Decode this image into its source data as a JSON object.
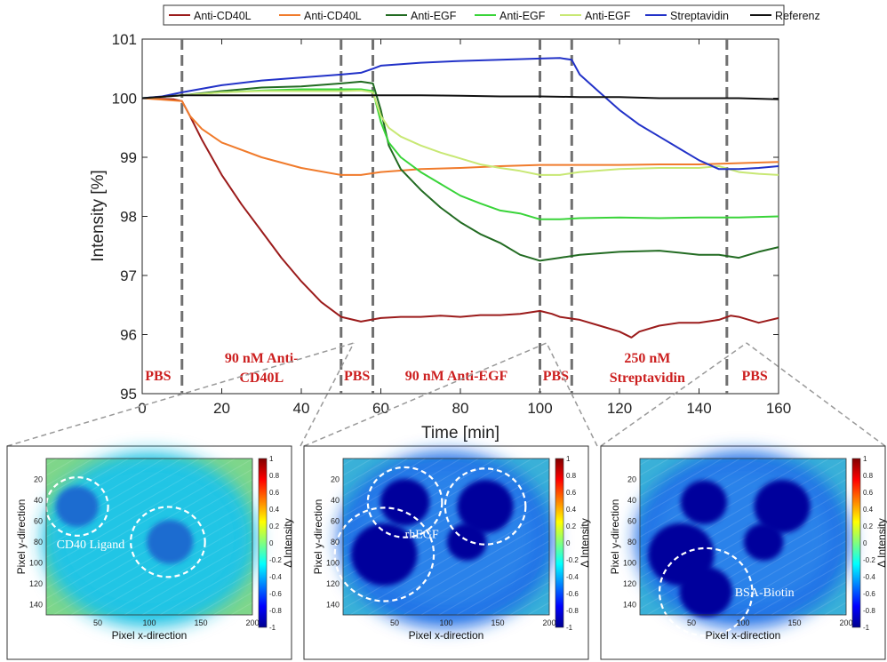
{
  "chart_data": {
    "type": "line",
    "xlabel": "Time [min]",
    "ylabel": "Intensity [%]",
    "xlim": [
      0,
      160
    ],
    "ylim": [
      95,
      101
    ],
    "x_ticks": [
      "0",
      "20",
      "40",
      "60",
      "80",
      "100",
      "120",
      "140",
      "160"
    ],
    "y_ticks": [
      "95",
      "96",
      "97",
      "98",
      "99",
      "100",
      "101"
    ],
    "grid": false,
    "legend_position": "top",
    "phase_dividers": [
      10,
      50,
      58,
      100,
      108,
      147
    ],
    "phase_labels": [
      {
        "lines": [
          "PBS"
        ],
        "x": 4
      },
      {
        "lines": [
          "90 nM Anti-",
          "CD40L"
        ],
        "x": 30
      },
      {
        "lines": [
          "PBS"
        ],
        "x": 54
      },
      {
        "lines": [
          "90 nM Anti-EGF"
        ],
        "x": 79
      },
      {
        "lines": [
          "PBS"
        ],
        "x": 104
      },
      {
        "lines": [
          "250 nM",
          "Streptavidin"
        ],
        "x": 127
      },
      {
        "lines": [
          "PBS"
        ],
        "x": 154
      }
    ],
    "series": [
      {
        "name": "Anti-CD40L",
        "color": "#9b1b1b",
        "points": [
          [
            0,
            100
          ],
          [
            8,
            99.98
          ],
          [
            10,
            99.95
          ],
          [
            12,
            99.7
          ],
          [
            15,
            99.3
          ],
          [
            20,
            98.7
          ],
          [
            25,
            98.2
          ],
          [
            30,
            97.75
          ],
          [
            35,
            97.3
          ],
          [
            40,
            96.9
          ],
          [
            45,
            96.55
          ],
          [
            50,
            96.3
          ],
          [
            55,
            96.22
          ],
          [
            60,
            96.28
          ],
          [
            65,
            96.3
          ],
          [
            70,
            96.3
          ],
          [
            75,
            96.32
          ],
          [
            80,
            96.3
          ],
          [
            85,
            96.33
          ],
          [
            90,
            96.33
          ],
          [
            95,
            96.35
          ],
          [
            100,
            96.4
          ],
          [
            103,
            96.35
          ],
          [
            105,
            96.3
          ],
          [
            110,
            96.25
          ],
          [
            115,
            96.15
          ],
          [
            120,
            96.05
          ],
          [
            123,
            95.95
          ],
          [
            125,
            96.05
          ],
          [
            130,
            96.15
          ],
          [
            135,
            96.2
          ],
          [
            140,
            96.2
          ],
          [
            145,
            96.25
          ],
          [
            148,
            96.32
          ],
          [
            150,
            96.3
          ],
          [
            155,
            96.2
          ],
          [
            160,
            96.28
          ]
        ]
      },
      {
        "name": "Anti-CD40L",
        "color": "#f07b2c",
        "points": [
          [
            0,
            100
          ],
          [
            10,
            99.95
          ],
          [
            12,
            99.7
          ],
          [
            15,
            99.48
          ],
          [
            20,
            99.25
          ],
          [
            30,
            99.0
          ],
          [
            40,
            98.82
          ],
          [
            50,
            98.7
          ],
          [
            55,
            98.7
          ],
          [
            60,
            98.75
          ],
          [
            70,
            98.8
          ],
          [
            80,
            98.82
          ],
          [
            90,
            98.85
          ],
          [
            100,
            98.87
          ],
          [
            110,
            98.87
          ],
          [
            120,
            98.87
          ],
          [
            130,
            98.88
          ],
          [
            140,
            98.88
          ],
          [
            150,
            98.9
          ],
          [
            160,
            98.92
          ]
        ]
      },
      {
        "name": "Anti-EGF",
        "color": "#226b22",
        "points": [
          [
            0,
            100
          ],
          [
            10,
            100.05
          ],
          [
            20,
            100.12
          ],
          [
            30,
            100.18
          ],
          [
            40,
            100.2
          ],
          [
            50,
            100.25
          ],
          [
            55,
            100.28
          ],
          [
            58,
            100.25
          ],
          [
            60,
            99.8
          ],
          [
            62,
            99.2
          ],
          [
            65,
            98.8
          ],
          [
            70,
            98.45
          ],
          [
            75,
            98.15
          ],
          [
            80,
            97.9
          ],
          [
            85,
            97.7
          ],
          [
            90,
            97.55
          ],
          [
            95,
            97.35
          ],
          [
            100,
            97.25
          ],
          [
            105,
            97.3
          ],
          [
            110,
            97.35
          ],
          [
            120,
            97.4
          ],
          [
            130,
            97.42
          ],
          [
            140,
            97.35
          ],
          [
            145,
            97.35
          ],
          [
            150,
            97.3
          ],
          [
            155,
            97.4
          ],
          [
            160,
            97.48
          ]
        ]
      },
      {
        "name": "Anti-EGF",
        "color": "#39d439",
        "points": [
          [
            0,
            100
          ],
          [
            10,
            100.05
          ],
          [
            20,
            100.1
          ],
          [
            30,
            100.13
          ],
          [
            40,
            100.15
          ],
          [
            50,
            100.15
          ],
          [
            55,
            100.15
          ],
          [
            58,
            100.12
          ],
          [
            60,
            99.6
          ],
          [
            62,
            99.25
          ],
          [
            65,
            99.0
          ],
          [
            70,
            98.75
          ],
          [
            75,
            98.55
          ],
          [
            80,
            98.35
          ],
          [
            85,
            98.22
          ],
          [
            90,
            98.1
          ],
          [
            95,
            98.05
          ],
          [
            100,
            97.95
          ],
          [
            105,
            97.95
          ],
          [
            110,
            97.97
          ],
          [
            120,
            97.98
          ],
          [
            130,
            97.97
          ],
          [
            140,
            97.98
          ],
          [
            150,
            97.98
          ],
          [
            160,
            98.0
          ]
        ]
      },
      {
        "name": "Anti-EGF",
        "color": "#c8e874",
        "points": [
          [
            0,
            100
          ],
          [
            10,
            100.05
          ],
          [
            20,
            100.1
          ],
          [
            30,
            100.12
          ],
          [
            40,
            100.12
          ],
          [
            50,
            100.12
          ],
          [
            55,
            100.13
          ],
          [
            58,
            100.1
          ],
          [
            60,
            99.7
          ],
          [
            62,
            99.5
          ],
          [
            65,
            99.35
          ],
          [
            70,
            99.2
          ],
          [
            75,
            99.08
          ],
          [
            80,
            98.98
          ],
          [
            85,
            98.88
          ],
          [
            90,
            98.82
          ],
          [
            95,
            98.77
          ],
          [
            100,
            98.7
          ],
          [
            105,
            98.7
          ],
          [
            110,
            98.75
          ],
          [
            120,
            98.8
          ],
          [
            130,
            98.82
          ],
          [
            140,
            98.82
          ],
          [
            145,
            98.85
          ],
          [
            150,
            98.75
          ],
          [
            155,
            98.72
          ],
          [
            160,
            98.7
          ]
        ]
      },
      {
        "name": "Streptavidin",
        "color": "#2232c8",
        "points": [
          [
            0,
            100
          ],
          [
            5,
            100.03
          ],
          [
            10,
            100.1
          ],
          [
            20,
            100.22
          ],
          [
            30,
            100.3
          ],
          [
            40,
            100.35
          ],
          [
            50,
            100.4
          ],
          [
            55,
            100.43
          ],
          [
            58,
            100.5
          ],
          [
            60,
            100.55
          ],
          [
            70,
            100.6
          ],
          [
            80,
            100.63
          ],
          [
            90,
            100.65
          ],
          [
            100,
            100.67
          ],
          [
            105,
            100.68
          ],
          [
            108,
            100.65
          ],
          [
            110,
            100.4
          ],
          [
            115,
            100.1
          ],
          [
            120,
            99.8
          ],
          [
            125,
            99.55
          ],
          [
            130,
            99.35
          ],
          [
            135,
            99.15
          ],
          [
            140,
            98.95
          ],
          [
            145,
            98.8
          ],
          [
            150,
            98.8
          ],
          [
            155,
            98.82
          ],
          [
            160,
            98.85
          ]
        ]
      },
      {
        "name": "Referenz",
        "color": "#111111",
        "points": [
          [
            0,
            100
          ],
          [
            10,
            100.05
          ],
          [
            20,
            100.05
          ],
          [
            30,
            100.05
          ],
          [
            40,
            100.05
          ],
          [
            50,
            100.05
          ],
          [
            60,
            100.05
          ],
          [
            70,
            100.05
          ],
          [
            80,
            100.04
          ],
          [
            90,
            100.03
          ],
          [
            100,
            100.03
          ],
          [
            110,
            100.02
          ],
          [
            120,
            100.02
          ],
          [
            130,
            100.0
          ],
          [
            140,
            100.0
          ],
          [
            150,
            100.0
          ],
          [
            160,
            99.98
          ]
        ]
      }
    ]
  },
  "heatmaps": [
    {
      "xlabel": "Pixel x-direction",
      "ylabel": "Pixel y-direction",
      "colorbar_label": "Δ Intensity",
      "x_ticks": [
        "50",
        "100",
        "150",
        "200"
      ],
      "y_ticks": [
        "20",
        "40",
        "60",
        "80",
        "100",
        "120",
        "140"
      ],
      "colorbar_ticks": [
        "1",
        "0.8",
        "0.6",
        "0.4",
        "0.2",
        "0",
        "-0.2",
        "-0.4",
        "-0.6",
        "-0.8",
        "-1"
      ],
      "annotations": [
        "CD40 Ligand"
      ]
    },
    {
      "xlabel": "Pixel x-direction",
      "ylabel": "Pixel y-direction",
      "colorbar_label": "Δ Intensity",
      "x_ticks": [
        "50",
        "100",
        "150",
        "200"
      ],
      "y_ticks": [
        "20",
        "40",
        "60",
        "80",
        "100",
        "120",
        "140"
      ],
      "colorbar_ticks": [
        "1",
        "0.8",
        "0.6",
        "0.4",
        "0.2",
        "0",
        "-0.2",
        "-0.4",
        "-0.6",
        "-0.8",
        "-1"
      ],
      "annotations": [
        "rhEGF"
      ]
    },
    {
      "xlabel": "Pixel x-direction",
      "ylabel": "Pixel y-direction",
      "colorbar_label": "Δ Intensity",
      "x_ticks": [
        "50",
        "100",
        "150",
        "200"
      ],
      "y_ticks": [
        "20",
        "40",
        "60",
        "80",
        "100",
        "120",
        "140"
      ],
      "colorbar_ticks": [
        "1",
        "0.8",
        "0.6",
        "0.4",
        "0.2",
        "0",
        "-0.2",
        "-0.4",
        "-0.6",
        "-0.8",
        "-1"
      ],
      "annotations": [
        "BSA-Biotin"
      ]
    }
  ]
}
